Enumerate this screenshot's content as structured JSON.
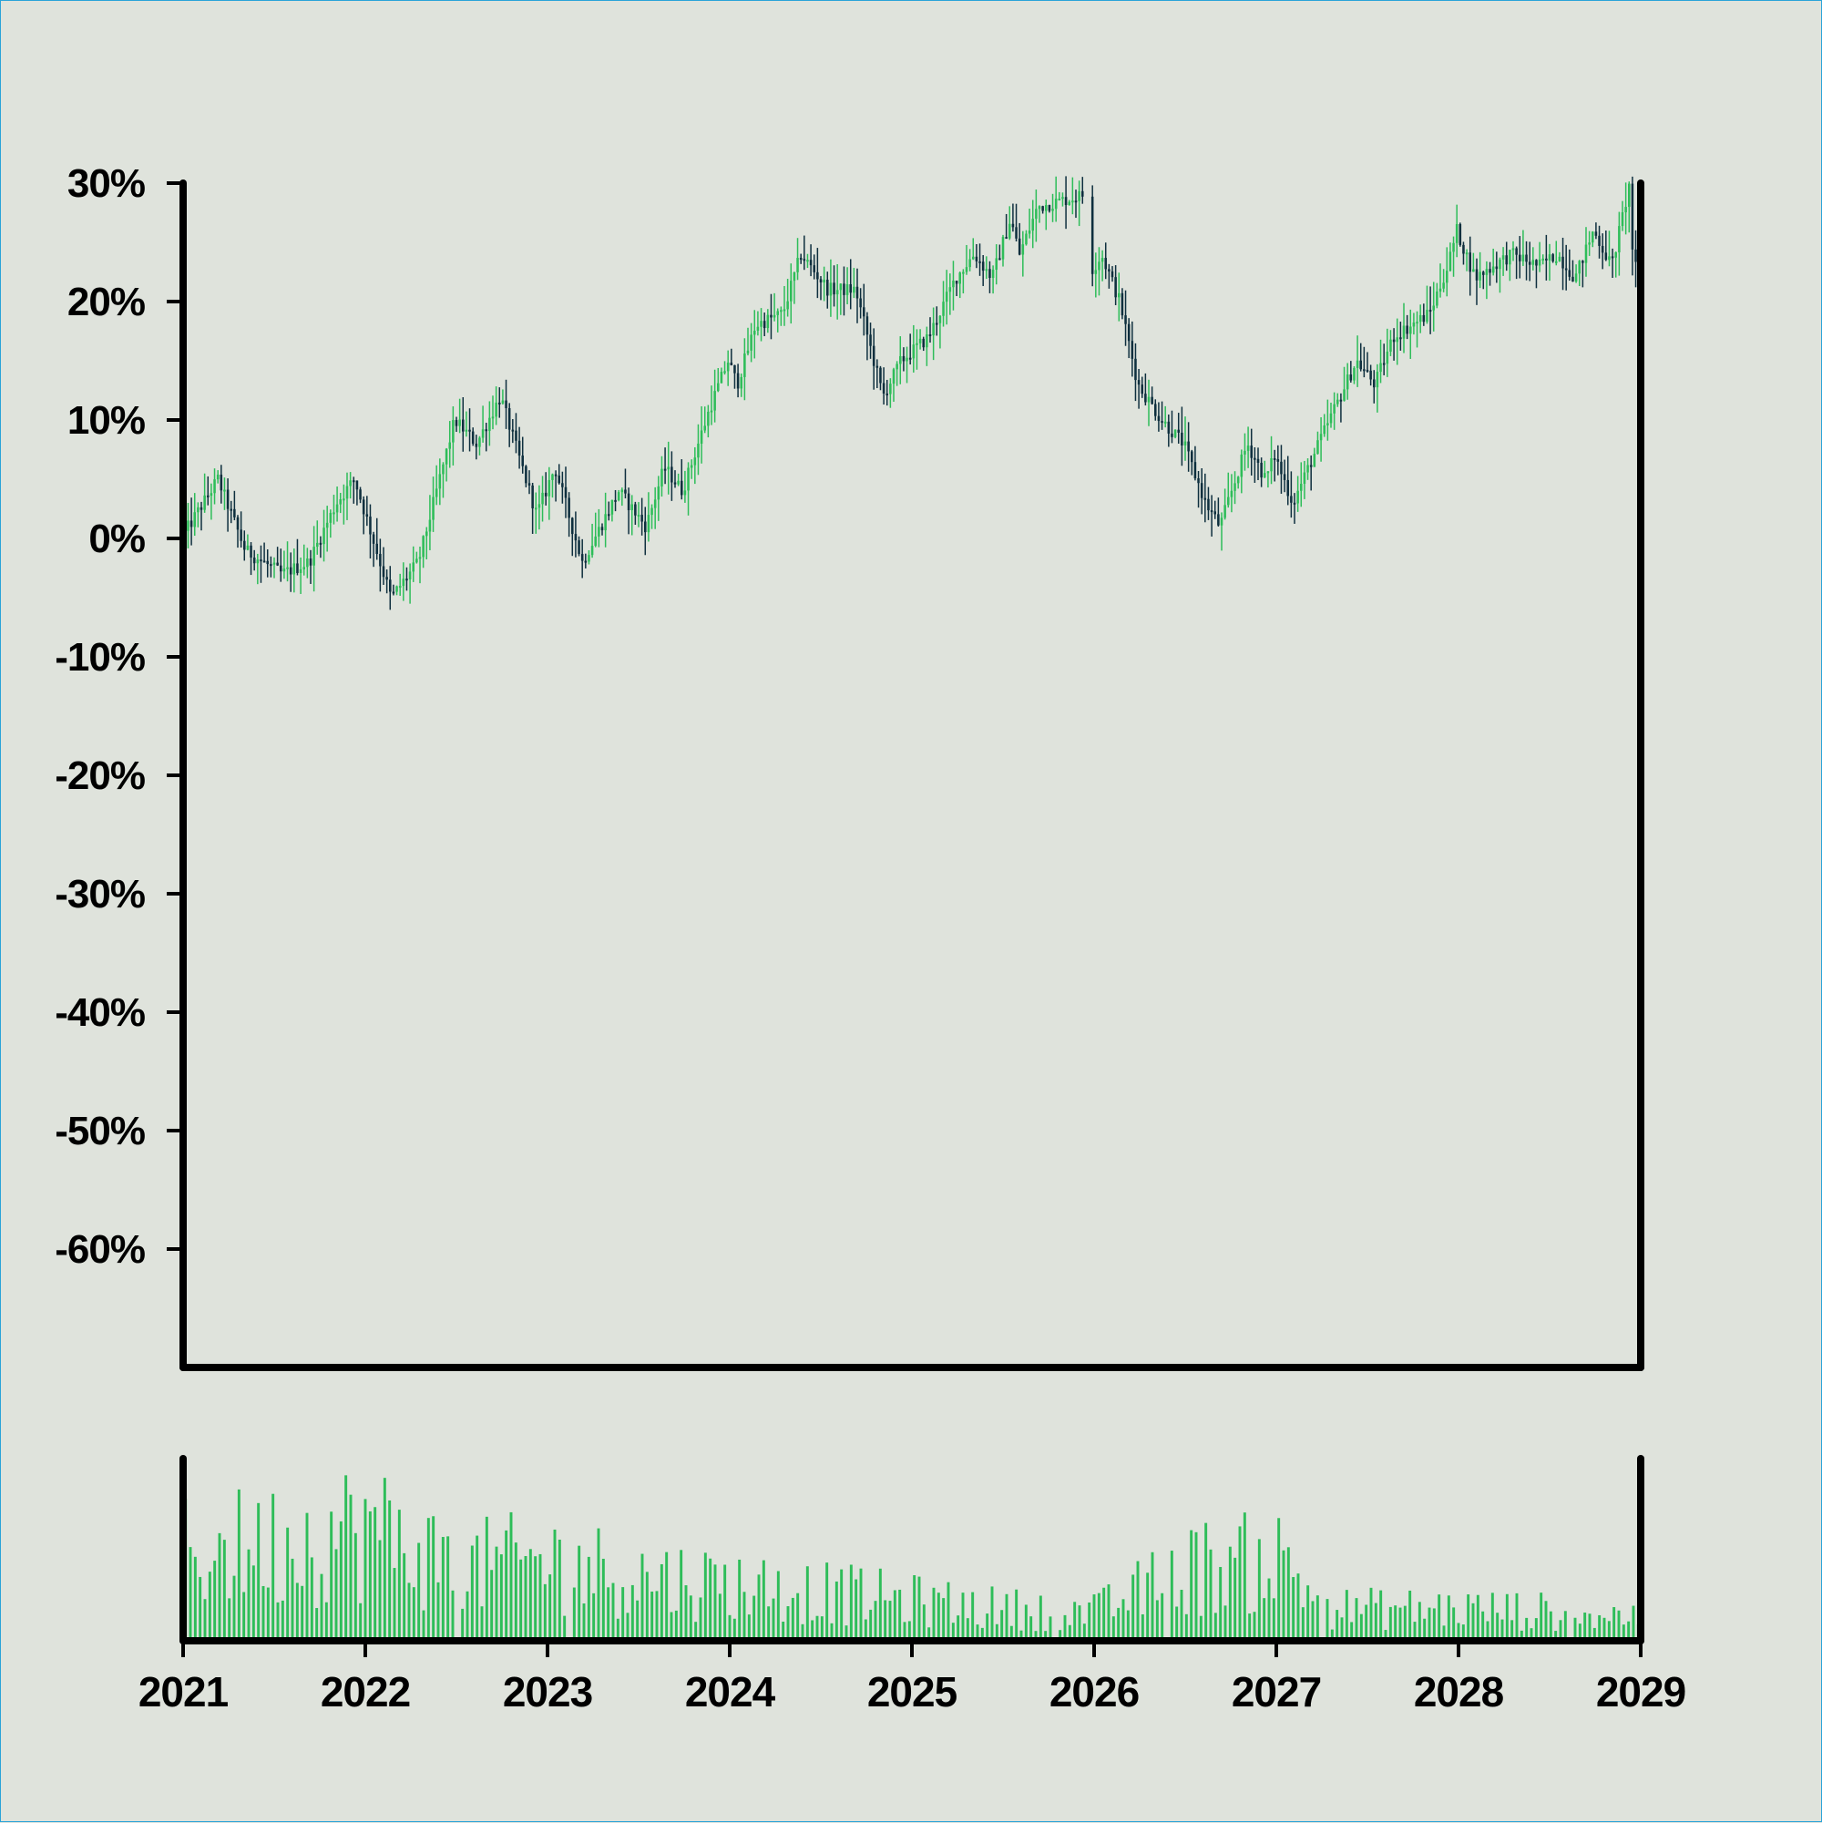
{
  "colors": {
    "background": "#dfe3dc",
    "up": "#2ebd59",
    "down": "#0e2f3e",
    "volume": "#2ebd59",
    "axis": "#000000"
  },
  "chart_data": {
    "type": "candlestick",
    "title": "",
    "xlabel": "",
    "ylabel": "",
    "y_tick_labels": [
      "30%",
      "20%",
      "10%",
      "0%",
      "-10%",
      "-20%",
      "-30%",
      "-40%",
      "-50%",
      "-60%"
    ],
    "y_ticks": [
      30,
      20,
      10,
      0,
      -10,
      -20,
      -30,
      -40,
      -50,
      -60
    ],
    "ylim": [
      -70,
      30
    ],
    "x_tick_labels": [
      "2021",
      "2022",
      "2023",
      "2024",
      "2025",
      "2026",
      "2027",
      "2028",
      "2029"
    ],
    "x_ticks": [
      2021,
      2022,
      2023,
      2024,
      2025,
      2026,
      2027,
      2028,
      2029
    ],
    "xlim": [
      2021,
      2029
    ],
    "grid": false,
    "legend": "none",
    "price_keypoints": [
      [
        2021.0,
        0
      ],
      [
        2021.2,
        5
      ],
      [
        2021.35,
        -1
      ],
      [
        2021.55,
        -3
      ],
      [
        2021.7,
        -2
      ],
      [
        2021.85,
        3
      ],
      [
        2021.95,
        5
      ],
      [
        2022.05,
        0
      ],
      [
        2022.15,
        -5
      ],
      [
        2022.3,
        -2
      ],
      [
        2022.5,
        10
      ],
      [
        2022.62,
        8
      ],
      [
        2022.75,
        12
      ],
      [
        2022.85,
        7
      ],
      [
        2022.95,
        2
      ],
      [
        2023.05,
        6
      ],
      [
        2023.2,
        -2
      ],
      [
        2023.4,
        4
      ],
      [
        2023.55,
        1
      ],
      [
        2023.65,
        6
      ],
      [
        2023.75,
        4
      ],
      [
        2023.9,
        11
      ],
      [
        2024.0,
        15
      ],
      [
        2024.05,
        13
      ],
      [
        2024.15,
        18
      ],
      [
        2024.3,
        19
      ],
      [
        2024.4,
        24
      ],
      [
        2024.55,
        21
      ],
      [
        2024.7,
        21
      ],
      [
        2024.85,
        12
      ],
      [
        2024.95,
        15
      ],
      [
        2025.1,
        17
      ],
      [
        2025.25,
        22
      ],
      [
        2025.35,
        24
      ],
      [
        2025.45,
        22
      ],
      [
        2025.55,
        27
      ],
      [
        2025.6,
        24
      ],
      [
        2025.7,
        28
      ],
      [
        2025.95,
        29
      ],
      [
        2025.97,
        22
      ],
      [
        2026.05,
        24
      ],
      [
        2026.15,
        20
      ],
      [
        2026.25,
        13
      ],
      [
        2026.38,
        10
      ],
      [
        2026.5,
        8
      ],
      [
        2026.62,
        3
      ],
      [
        2026.7,
        1
      ],
      [
        2026.85,
        8
      ],
      [
        2026.95,
        5
      ],
      [
        2027.0,
        7
      ],
      [
        2027.1,
        3
      ],
      [
        2027.3,
        10
      ],
      [
        2027.45,
        15
      ],
      [
        2027.55,
        13
      ],
      [
        2027.65,
        17
      ],
      [
        2027.85,
        19
      ],
      [
        2027.95,
        23
      ],
      [
        2028.0,
        26
      ],
      [
        2028.1,
        22
      ],
      [
        2028.3,
        24
      ],
      [
        2028.45,
        23
      ],
      [
        2028.55,
        24
      ],
      [
        2028.65,
        22
      ],
      [
        2028.75,
        26
      ],
      [
        2028.85,
        23
      ],
      [
        2028.95,
        30
      ],
      [
        2028.97,
        22
      ],
      [
        2029.0,
        24
      ]
    ],
    "volume_keypoints": [
      [
        2021.0,
        55
      ],
      [
        2021.5,
        60
      ],
      [
        2022.0,
        70
      ],
      [
        2022.5,
        45
      ],
      [
        2023.0,
        50
      ],
      [
        2023.5,
        40
      ],
      [
        2024.0,
        35
      ],
      [
        2024.5,
        30
      ],
      [
        2025.0,
        25
      ],
      [
        2025.5,
        20
      ],
      [
        2026.0,
        18
      ],
      [
        2026.5,
        45
      ],
      [
        2027.0,
        50
      ],
      [
        2027.3,
        20
      ],
      [
        2028.0,
        20
      ],
      [
        2028.5,
        18
      ],
      [
        2029.0,
        15
      ]
    ]
  }
}
